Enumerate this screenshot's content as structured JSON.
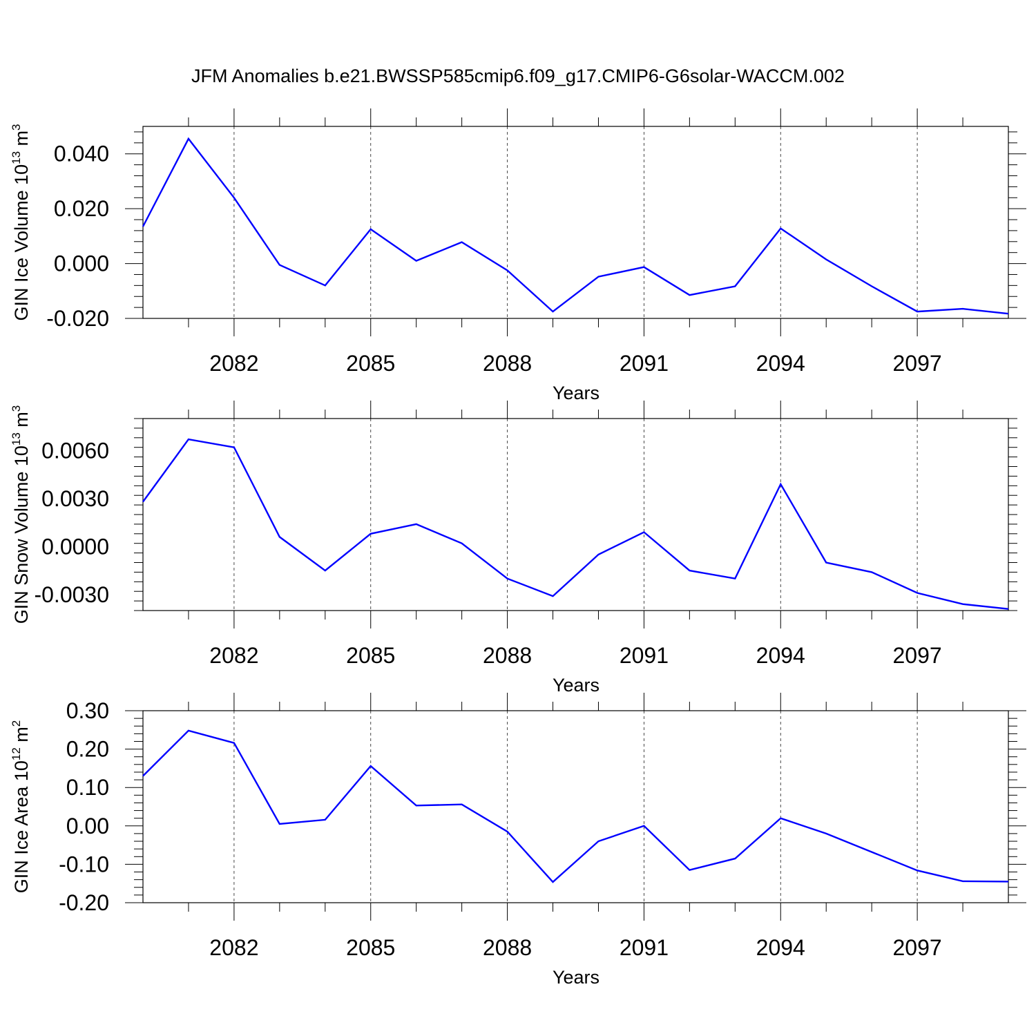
{
  "chart_data": [
    {
      "type": "line",
      "title": "JFM Anomalies b.e21.BWSSP585cmip6.f09_g17.CMIP6-G6solar-WACCM.002",
      "ylabel_main": "GIN Ice Volume 10",
      "ylabel_sup": "13",
      "ylabel_unit": " m",
      "ylabel_unit_sup": "3",
      "xlabel": "Years",
      "xlim": [
        2080,
        2099
      ],
      "ylim": [
        -0.02,
        0.05
      ],
      "xticks": [
        2082,
        2085,
        2088,
        2091,
        2094,
        2097
      ],
      "xtick_labels": [
        "2082",
        "2085",
        "2088",
        "2091",
        "2094",
        "2097"
      ],
      "yticks": [
        -0.02,
        0.0,
        0.02,
        0.04
      ],
      "ytick_labels": [
        "-0.020",
        "0.000",
        "0.020",
        "0.040"
      ],
      "grid": "dashed vertical at major x ticks",
      "series": [
        {
          "color": "#0000ff",
          "x": [
            2080,
            2081,
            2082,
            2083,
            2084,
            2085,
            2086,
            2087,
            2088,
            2089,
            2090,
            2091,
            2092,
            2093,
            2094,
            2095,
            2096,
            2097,
            2098,
            2099
          ],
          "values": [
            0.0135,
            0.0455,
            0.024,
            -0.0005,
            -0.008,
            0.0125,
            0.001,
            0.0078,
            -0.0025,
            -0.0175,
            -0.0048,
            -0.0013,
            -0.0115,
            -0.0083,
            0.0128,
            0.0015,
            -0.0083,
            -0.0175,
            -0.0165,
            -0.0183
          ]
        }
      ]
    },
    {
      "type": "line",
      "ylabel_main": "GIN Snow Volume 10",
      "ylabel_sup": "13",
      "ylabel_unit": " m",
      "ylabel_unit_sup": "3",
      "xlabel": "Years",
      "xlim": [
        2080,
        2099
      ],
      "ylim": [
        -0.004,
        0.008
      ],
      "xticks": [
        2082,
        2085,
        2088,
        2091,
        2094,
        2097
      ],
      "xtick_labels": [
        "2082",
        "2085",
        "2088",
        "2091",
        "2094",
        "2097"
      ],
      "yticks": [
        -0.003,
        0.0,
        0.003,
        0.006
      ],
      "ytick_labels": [
        "-0.0030",
        "0.0000",
        "0.0030",
        "0.0060"
      ],
      "grid": "dashed vertical at major x ticks",
      "series": [
        {
          "color": "#0000ff",
          "x": [
            2080,
            2081,
            2082,
            2083,
            2084,
            2085,
            2086,
            2087,
            2088,
            2089,
            2090,
            2091,
            2092,
            2093,
            2094,
            2095,
            2096,
            2097,
            2098,
            2099
          ],
          "values": [
            0.0028,
            0.0067,
            0.0062,
            0.0006,
            -0.0015,
            0.0008,
            0.0014,
            0.0002,
            -0.002,
            -0.0031,
            -0.0005,
            0.0009,
            -0.0015,
            -0.002,
            0.0039,
            -0.001,
            -0.0016,
            -0.0029,
            -0.0036,
            -0.0039
          ]
        }
      ]
    },
    {
      "type": "line",
      "ylabel_main": "GIN Ice Area 10",
      "ylabel_sup": "12",
      "ylabel_unit": " m",
      "ylabel_unit_sup": "2",
      "xlabel": "Years",
      "xlim": [
        2080,
        2099
      ],
      "ylim": [
        -0.2,
        0.3
      ],
      "xticks": [
        2082,
        2085,
        2088,
        2091,
        2094,
        2097
      ],
      "xtick_labels": [
        "2082",
        "2085",
        "2088",
        "2091",
        "2094",
        "2097"
      ],
      "yticks": [
        -0.2,
        -0.1,
        0.0,
        0.1,
        0.2,
        0.3
      ],
      "ytick_labels": [
        "-0.20",
        "-0.10",
        "0.00",
        "0.10",
        "0.20",
        "0.30"
      ],
      "grid": "dashed vertical at major x ticks",
      "series": [
        {
          "color": "#0000ff",
          "x": [
            2080,
            2081,
            2082,
            2083,
            2084,
            2085,
            2086,
            2087,
            2088,
            2089,
            2090,
            2091,
            2092,
            2093,
            2094,
            2095,
            2096,
            2097,
            2098,
            2099
          ],
          "values": [
            0.13,
            0.248,
            0.216,
            0.005,
            0.016,
            0.156,
            0.053,
            0.056,
            -0.015,
            -0.146,
            -0.04,
            0.0,
            -0.115,
            -0.085,
            0.02,
            -0.02,
            -0.068,
            -0.116,
            -0.144,
            -0.145
          ]
        }
      ]
    }
  ]
}
